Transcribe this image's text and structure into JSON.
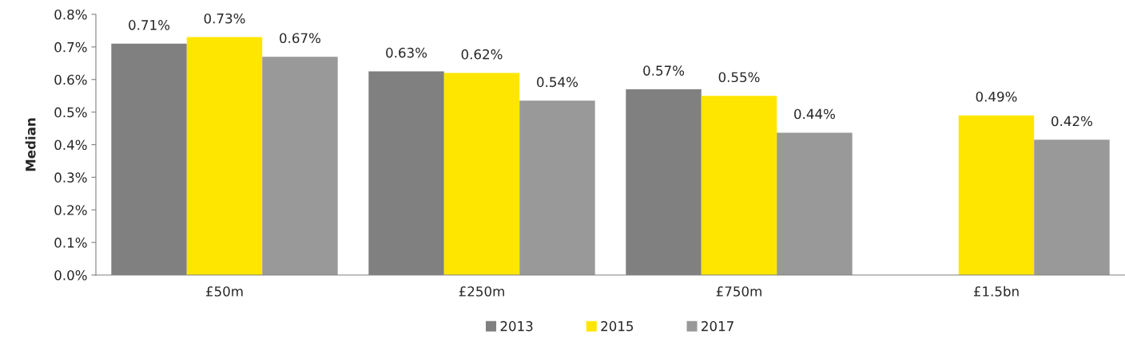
{
  "chart_data": {
    "type": "bar",
    "ylabel": "Median",
    "categories": [
      "£50m",
      "£250m",
      "£750m",
      "£1.5bn"
    ],
    "series": [
      {
        "name": "2013",
        "color": "#808080",
        "values": [
          0.71,
          0.625,
          0.57,
          null
        ],
        "value_labels": [
          "0.71%",
          "0.63%",
          "0.57%",
          null
        ]
      },
      {
        "name": "2015",
        "color": "#ffe600",
        "values": [
          0.73,
          0.62,
          0.55,
          0.49
        ],
        "value_labels": [
          "0.73%",
          "0.62%",
          "0.55%",
          "0.49%"
        ]
      },
      {
        "name": "2017",
        "color": "#999999",
        "values": [
          0.67,
          0.535,
          0.437,
          0.415
        ],
        "value_labels": [
          "0.67%",
          "0.54%",
          "0.44%",
          "0.42%"
        ]
      }
    ],
    "ylim": [
      0,
      0.8
    ],
    "yticks": [
      {
        "value": 0,
        "label": "0.0%"
      },
      {
        "value": 0.1,
        "label": "0.1%"
      },
      {
        "value": 0.2,
        "label": "0.2%"
      },
      {
        "value": 0.3,
        "label": "0.3%"
      },
      {
        "value": 0.4,
        "label": "0.4%"
      },
      {
        "value": 0.5,
        "label": "0.5%"
      },
      {
        "value": 0.6,
        "label": "0.6%"
      },
      {
        "value": 0.7,
        "label": "0.7%"
      },
      {
        "value": 0.8,
        "label": "0.8%"
      }
    ],
    "grid": false,
    "legend": "bottom"
  }
}
